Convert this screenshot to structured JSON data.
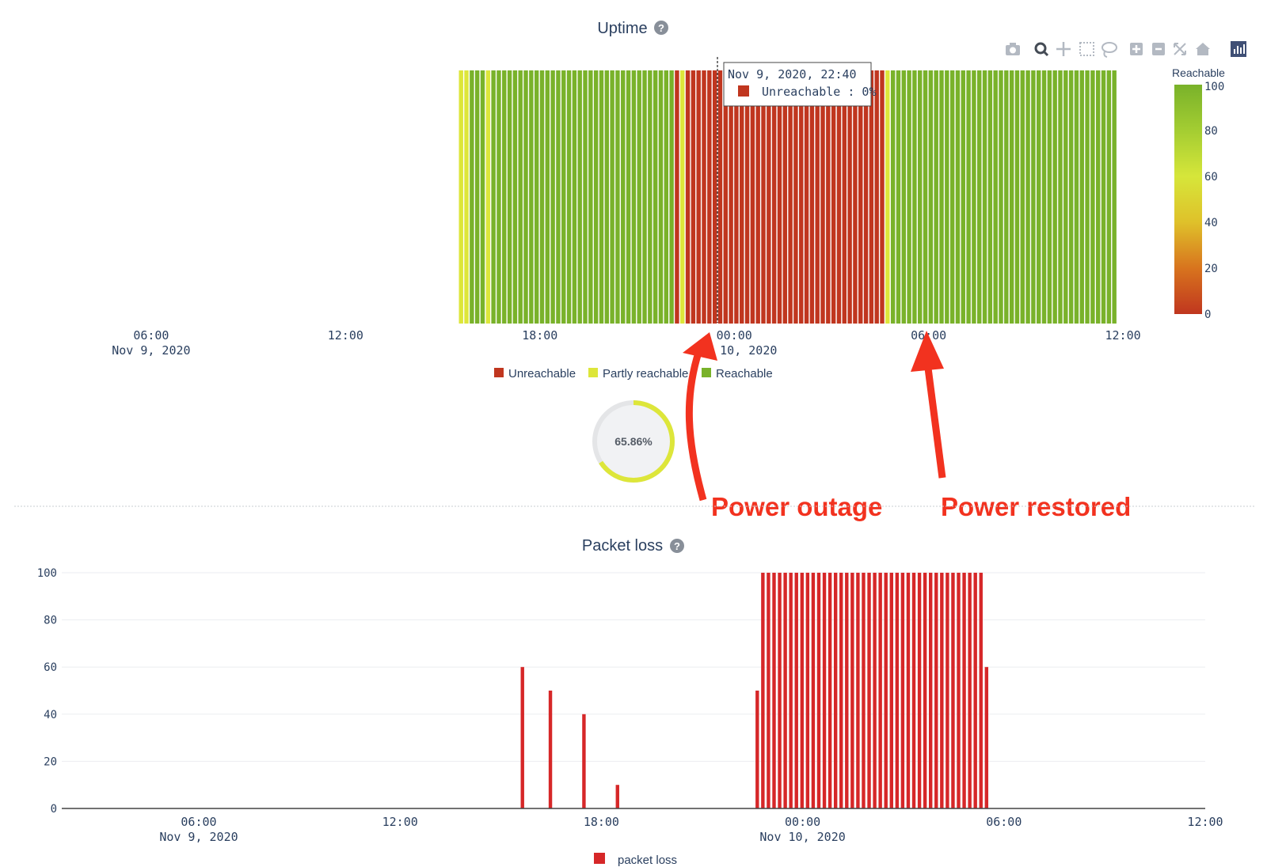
{
  "uptime": {
    "title": "Uptime",
    "help_icon": "question-circle-icon",
    "toolbar": [
      {
        "name": "camera-icon",
        "title": "Download plot as a png"
      },
      {
        "name": "zoom-icon",
        "title": "Zoom"
      },
      {
        "name": "pan-icon",
        "title": "Pan"
      },
      {
        "name": "box-select-icon",
        "title": "Box Select"
      },
      {
        "name": "lasso-select-icon",
        "title": "Lasso Select"
      },
      {
        "name": "zoom-in-icon",
        "title": "Zoom in"
      },
      {
        "name": "zoom-out-icon",
        "title": "Zoom out"
      },
      {
        "name": "autoscale-icon",
        "title": "Autoscale"
      },
      {
        "name": "reset-axes-icon",
        "title": "Reset axes"
      },
      {
        "name": "plotly-logo-icon",
        "title": "Produced with Plotly"
      }
    ],
    "tooltip": {
      "date": "Nov 9, 2020, 22:40",
      "label": "Unreachable : 0%",
      "color": "#c0361f"
    },
    "colorbar": {
      "title": "Reachable",
      "ticks": [
        "100",
        "80",
        "60",
        "40",
        "20",
        "0"
      ]
    },
    "legend": [
      {
        "label": "Unreachable",
        "color": "#c0361f"
      },
      {
        "label": "Partly reachable",
        "color": "#dde63a"
      },
      {
        "label": "Reachable",
        "color": "#79b22a"
      }
    ],
    "gauge": {
      "value_text": "65.86%",
      "value": 65.86,
      "color": "#dde63a"
    },
    "annotations": {
      "outage": "Power outage",
      "restored": "Power restored"
    }
  },
  "packet_loss": {
    "title": "Packet loss",
    "help_icon": "question-circle-icon",
    "legend_label": "packet loss"
  },
  "chart_data": [
    {
      "type": "heatmap",
      "title": "Uptime",
      "xlabel": "",
      "ylabel": "",
      "x_tick_labels": [
        {
          "time": "06:00",
          "date": "Nov 9, 2020"
        },
        {
          "time": "12:00",
          "date": ""
        },
        {
          "time": "18:00",
          "date": ""
        },
        {
          "time": "00:00",
          "date": "Nov 10, 2020"
        },
        {
          "time": "06:00",
          "date": ""
        },
        {
          "time": "12:00",
          "date": ""
        }
      ],
      "xlim": [
        "2020-11-09 01:20",
        "2020-11-10 13:00"
      ],
      "color_scale": [
        [
          "0",
          "#c0361f"
        ],
        [
          "40",
          "#dde63a"
        ],
        [
          "100",
          "#79b22a"
        ]
      ],
      "colorbar_range": [
        0,
        100
      ],
      "segments": [
        {
          "start": "2020-11-09 15:30",
          "end": "2020-11-09 15:50",
          "value": 50,
          "category": "Partly reachable"
        },
        {
          "start": "2020-11-09 15:50",
          "end": "2020-11-09 16:20",
          "value": 100,
          "category": "Reachable"
        },
        {
          "start": "2020-11-09 16:20",
          "end": "2020-11-09 16:30",
          "value": 55,
          "category": "Partly reachable"
        },
        {
          "start": "2020-11-09 16:30",
          "end": "2020-11-09 22:10",
          "value": 100,
          "category": "Reachable"
        },
        {
          "start": "2020-11-09 22:10",
          "end": "2020-11-09 22:20",
          "value": 0,
          "category": "Unreachable"
        },
        {
          "start": "2020-11-09 22:20",
          "end": "2020-11-09 22:30",
          "value": 50,
          "category": "Partly reachable"
        },
        {
          "start": "2020-11-09 22:30",
          "end": "2020-11-10 04:40",
          "value": 0,
          "category": "Unreachable"
        },
        {
          "start": "2020-11-10 04:40",
          "end": "2020-11-10 04:50",
          "value": 50,
          "category": "Partly reachable"
        },
        {
          "start": "2020-11-10 04:50",
          "end": "2020-11-10 11:50",
          "value": 100,
          "category": "Reachable"
        }
      ],
      "legend_position": "bottom-center"
    },
    {
      "type": "bar",
      "title": "Packet loss",
      "xlabel": "",
      "ylabel": "",
      "ylim": [
        0,
        100
      ],
      "y_ticks": [
        0,
        20,
        40,
        60,
        80,
        100
      ],
      "x_tick_labels": [
        {
          "time": "06:00",
          "date": "Nov 9, 2020"
        },
        {
          "time": "12:00",
          "date": ""
        },
        {
          "time": "18:00",
          "date": ""
        },
        {
          "time": "00:00",
          "date": "Nov 10, 2020"
        },
        {
          "time": "06:00",
          "date": ""
        },
        {
          "time": "12:00",
          "date": ""
        }
      ],
      "xlim": [
        "2020-11-09 01:55",
        "2020-11-10 12:00"
      ],
      "grid": true,
      "color": "#d62728",
      "series": [
        {
          "name": "packet loss",
          "points": [
            {
              "x": "2020-11-09 15:40",
              "y": 60
            },
            {
              "x": "2020-11-09 16:30",
              "y": 50
            },
            {
              "x": "2020-11-09 17:30",
              "y": 40
            },
            {
              "x": "2020-11-09 18:30",
              "y": 10
            },
            {
              "x": "2020-11-09 22:40",
              "y": 50
            }
          ],
          "full_outage": {
            "start": "2020-11-09 22:50",
            "end": "2020-11-10 05:20",
            "y": 100
          },
          "after_outage": {
            "x": "2020-11-10 05:30",
            "y": 60
          }
        }
      ],
      "legend_position": "bottom-center"
    }
  ]
}
